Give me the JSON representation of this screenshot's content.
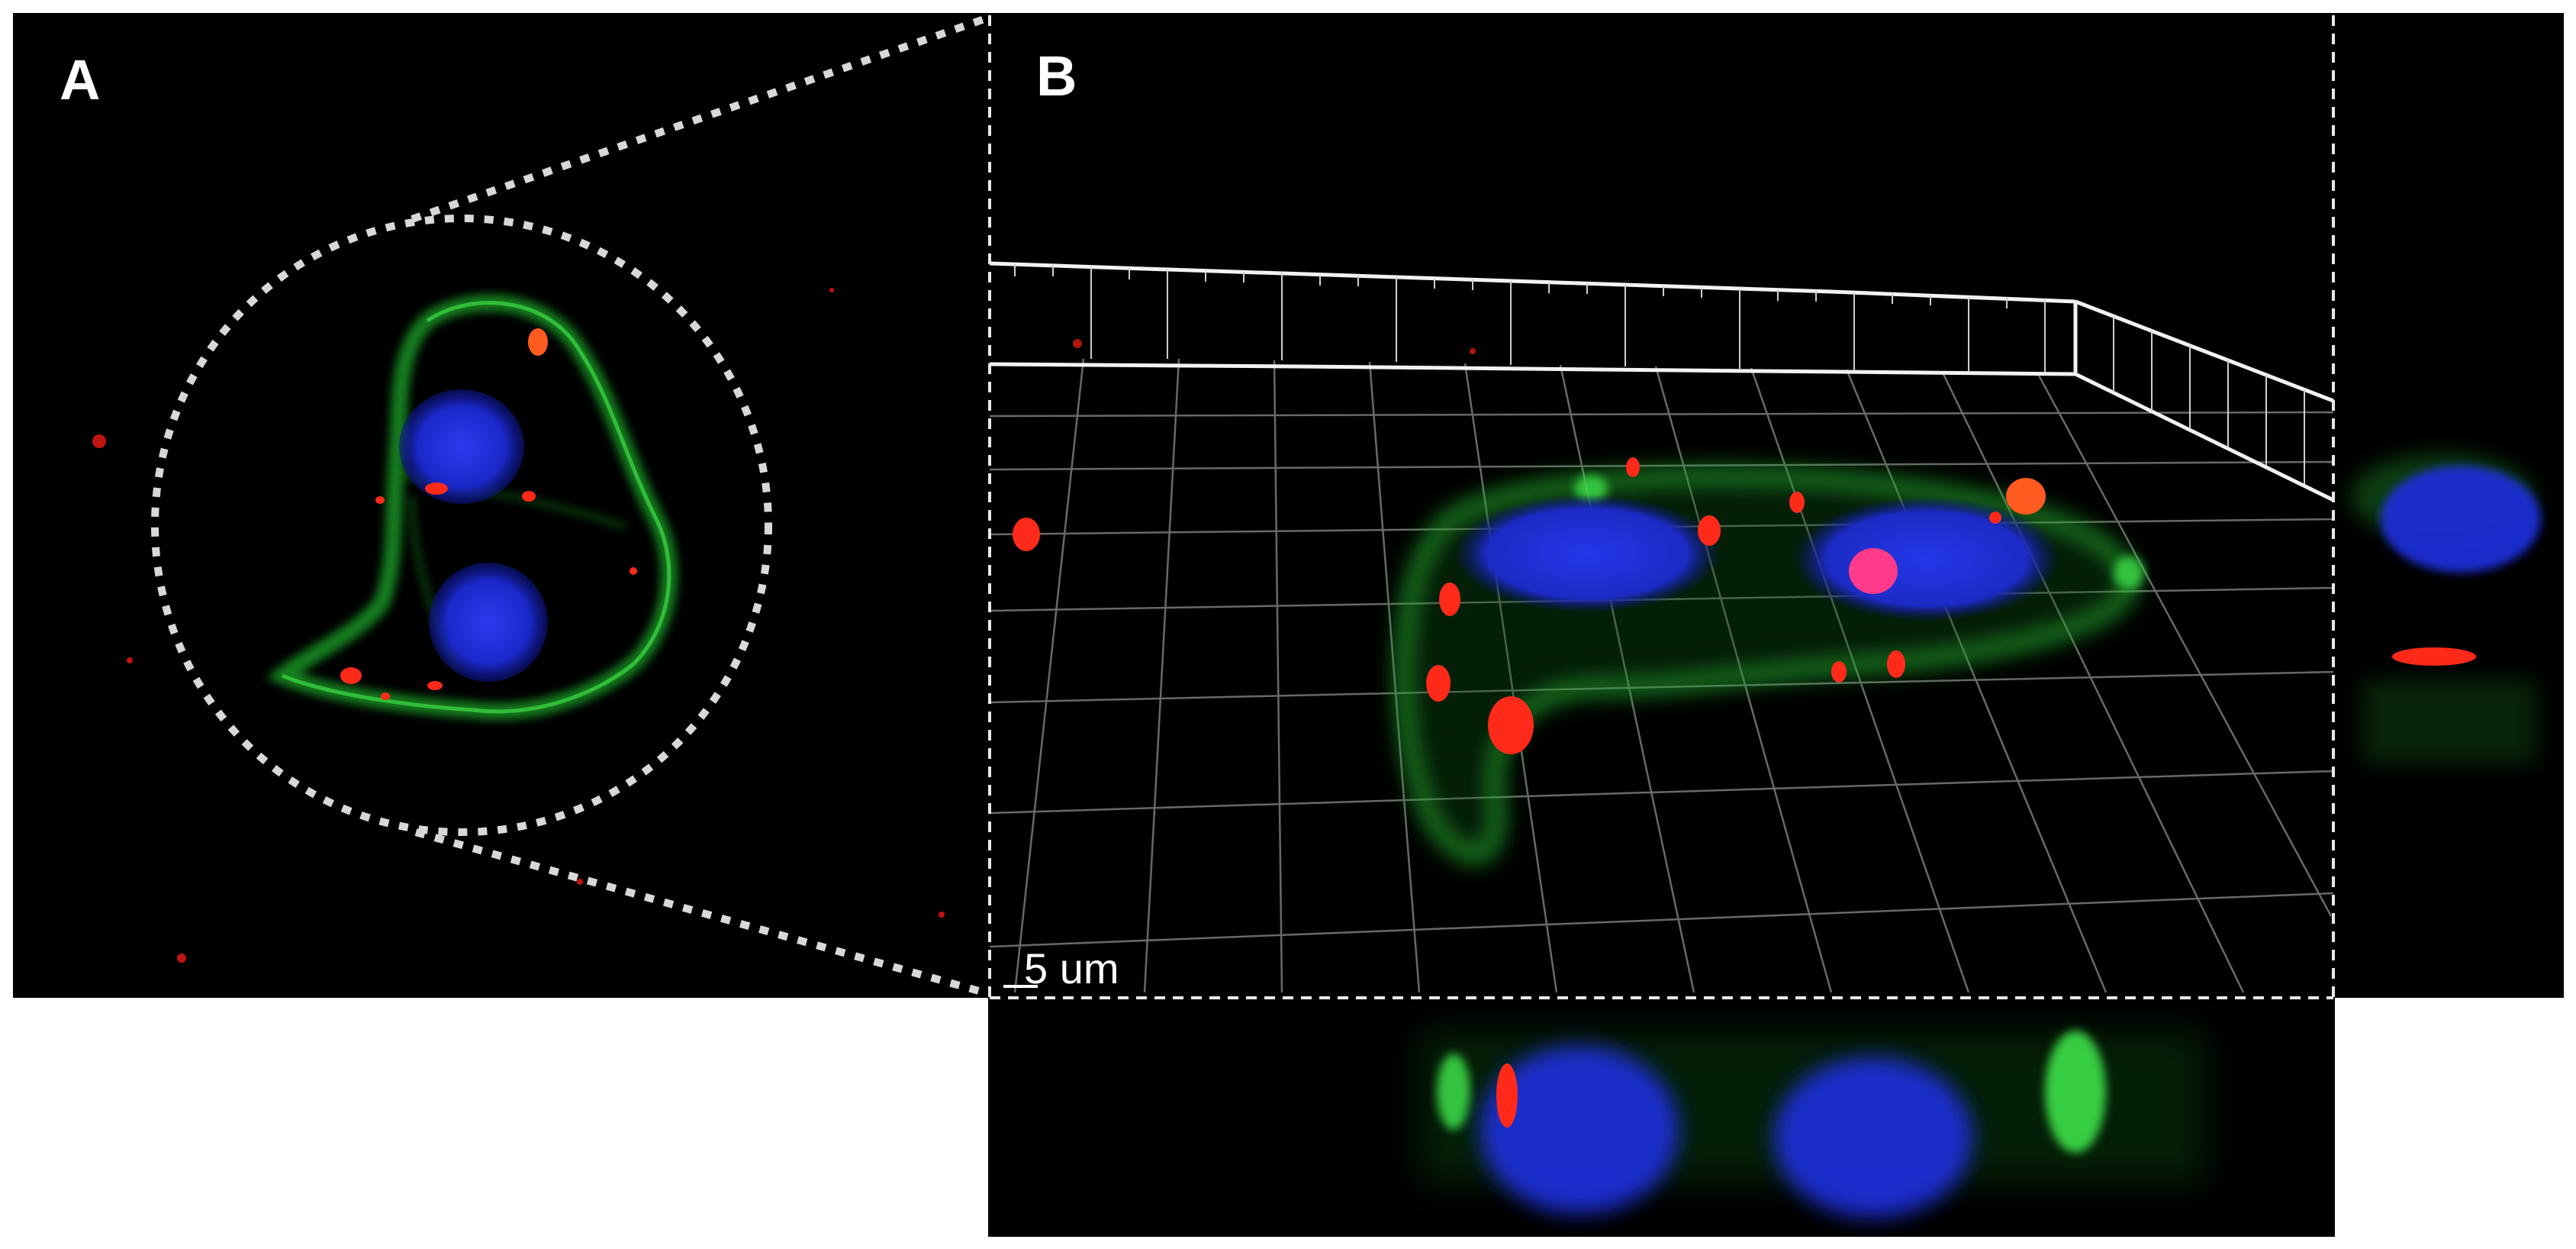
{
  "figure": {
    "panels": [
      {
        "letter": "A"
      },
      {
        "letter": "B"
      }
    ],
    "scale_bar": {
      "label": "5 um"
    },
    "channels": {
      "membrane": "#1fbf2a",
      "nucleus": "#1a2fd6",
      "particles": "#ff2a1a",
      "background": "#000000",
      "outline": "#d8d8d8"
    }
  }
}
